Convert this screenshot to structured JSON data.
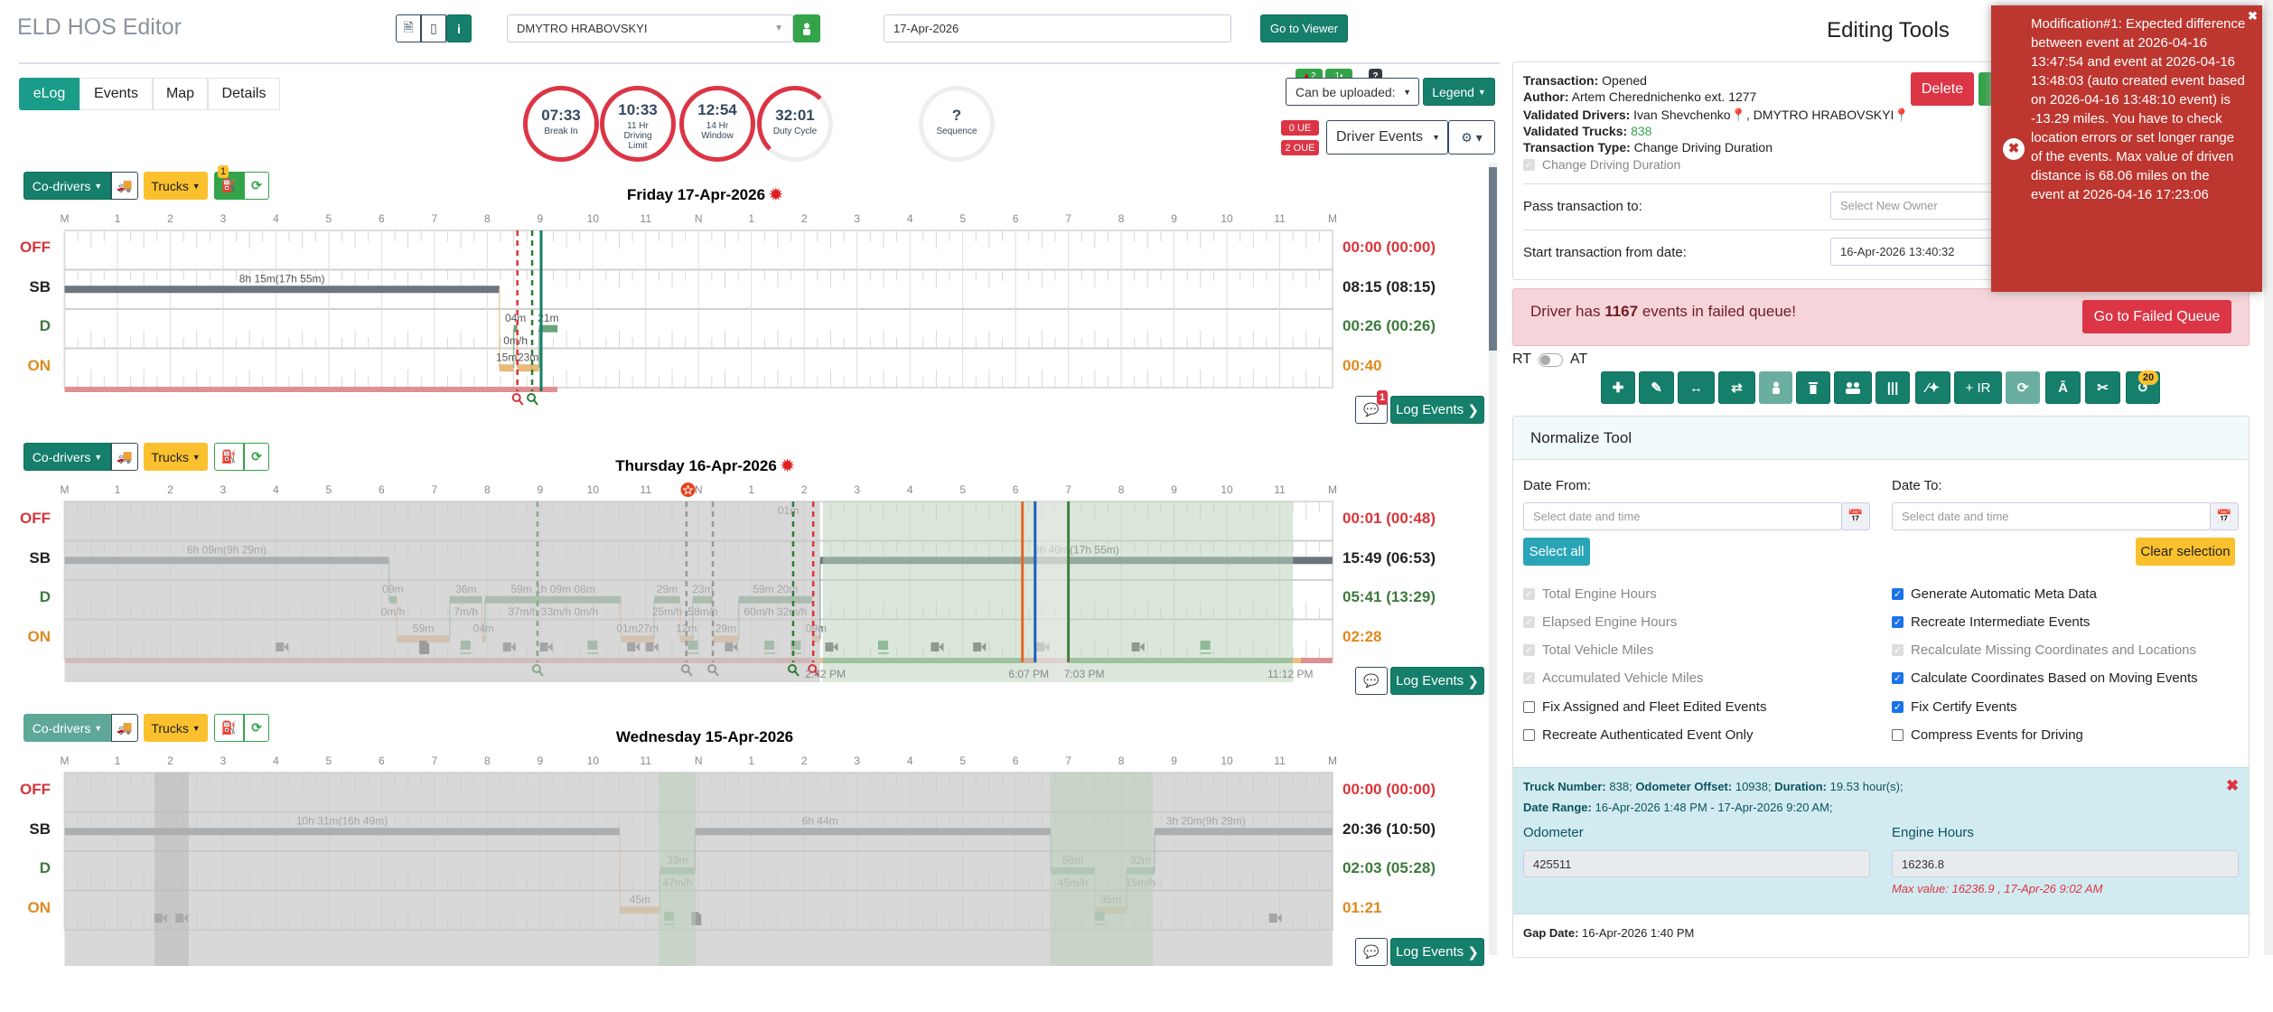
{
  "header": {
    "app_title": "ELD HOS Editor",
    "driver_select": "DMYTRO HRABOVSKYI",
    "date_input": "17-Apr-2026",
    "go_to_viewer": "Go to Viewer"
  },
  "tabs": [
    "eLog",
    "Events",
    "Map",
    "Details"
  ],
  "active_tab": "eLog",
  "clocks": [
    {
      "time": "07:33",
      "label": "Break In"
    },
    {
      "time": "10:33",
      "label": "11 Hr Driving Limit"
    },
    {
      "time": "12:54",
      "label": "14 Hr Window"
    },
    {
      "time": "32:01",
      "label": "Duty Cycle"
    },
    {
      "time": "?",
      "label": "Sequence"
    }
  ],
  "controls": {
    "badge_drivers": "2",
    "badge_trucks": "1",
    "badge_help": "?",
    "can_be_uploaded": "Can be uploaded:",
    "legend": "Legend",
    "ue": "0 UE",
    "oue": "2 OUE",
    "driver_events": "Driver Events"
  },
  "day_toolbar": {
    "codrivers": "Co-drivers",
    "trucks": "Trucks",
    "log_events": "Log Events"
  },
  "hour_labels": [
    "M",
    "1",
    "2",
    "3",
    "4",
    "5",
    "6",
    "7",
    "8",
    "9",
    "10",
    "11",
    "N",
    "1",
    "2",
    "3",
    "4",
    "5",
    "6",
    "7",
    "8",
    "9",
    "10",
    "11",
    "M"
  ],
  "row_labels": [
    "OFF",
    "SB",
    "D",
    "ON"
  ],
  "status_colors": {
    "OFF": "#d9343a",
    "SB": "#222222",
    "D": "#3c7a3c",
    "ON": "#e08a1e"
  },
  "days": [
    {
      "title": "Friday 17-Apr-2026",
      "violation": true,
      "engine_badge": "1",
      "comment_badge": "1",
      "totals": [
        "00:00 (00:00)",
        "08:15 (08:15)",
        "00:26 (00:26)",
        "00:40"
      ],
      "segments": [
        {
          "s": "SB",
          "from": 0,
          "to": 8.23,
          "dur": "8h 15m(17h 55m)"
        },
        {
          "s": "ON",
          "from": 8.23,
          "to": 8.5,
          "dur": "15m"
        },
        {
          "s": "D",
          "from": 8.5,
          "to": 8.57,
          "dur": "04m",
          "speed": "0m/h"
        },
        {
          "s": "ON",
          "from": 8.57,
          "to": 8.98,
          "dur": "23m"
        },
        {
          "s": "D",
          "from": 8.98,
          "to": 9.33,
          "dur": "21m"
        }
      ],
      "markers": [
        {
          "h": 8.57,
          "c": "#d9343a",
          "dash": true
        },
        {
          "h": 8.85,
          "c": "#2e7d32",
          "dash": true
        },
        {
          "h": 9.02,
          "c": "#157f6b",
          "dash": false
        }
      ],
      "timeline": [
        {
          "from": 0,
          "to": 9.33,
          "c": "#e09090"
        }
      ],
      "shades": [],
      "icons": [],
      "times": []
    },
    {
      "title": "Thursday 16-Apr-2026",
      "violation": true,
      "engine_badge": "",
      "comment_badge": "",
      "totals": [
        "00:01 (00:48)",
        "15:49 (06:53)",
        "05:41 (13:29)",
        "02:28"
      ],
      "segments": [
        {
          "s": "SB",
          "from": 0,
          "to": 6.14,
          "dur": "6h 09m(9h 29m)"
        },
        {
          "s": "D",
          "from": 6.14,
          "to": 6.29,
          "dur": "09m",
          "speed": "0m/h"
        },
        {
          "s": "ON",
          "from": 6.29,
          "to": 7.29,
          "dur": "59m"
        },
        {
          "s": "D",
          "from": 7.29,
          "to": 7.9,
          "dur": "36m",
          "speed": "7m/h"
        },
        {
          "s": "ON",
          "from": 7.9,
          "to": 7.96,
          "dur": "04m"
        },
        {
          "s": "D",
          "from": 7.96,
          "to": 10.53,
          "dur": "59m   1h 09m  08m",
          "speed": "37m/h  33m/h  0m/h"
        },
        {
          "s": "ON",
          "from": 10.53,
          "to": 11.16,
          "dur": "01m27m"
        },
        {
          "s": "D",
          "from": 11.16,
          "to": 11.65,
          "dur": "29m",
          "speed": "25m/h"
        },
        {
          "s": "ON",
          "from": 11.65,
          "to": 11.89,
          "dur": "12m"
        },
        {
          "s": "D",
          "from": 11.89,
          "to": 12.27,
          "dur": "23m",
          "speed": "58m/h"
        },
        {
          "s": "ON",
          "from": 12.27,
          "to": 12.76,
          "dur": "29m"
        },
        {
          "s": "D",
          "from": 12.76,
          "to": 14.15,
          "dur": "59m   20m",
          "speed": "60m/h  32m/h"
        },
        {
          "s": "ON",
          "from": 14.15,
          "to": 14.3,
          "dur": "09m"
        },
        {
          "s": "SB",
          "from": 14.3,
          "to": 24,
          "dur": "9h 40m(17h 55m)"
        }
      ],
      "off_note": {
        "h": 13.7,
        "text": "01m"
      },
      "markers": [
        {
          "h": 8.95,
          "c": "#8aa88a",
          "dash": true
        },
        {
          "h": 11.77,
          "c": "#999",
          "dash": true
        },
        {
          "h": 12.27,
          "c": "#999",
          "dash": true
        },
        {
          "h": 13.79,
          "c": "#2e7d32",
          "dash": true
        },
        {
          "h": 14.17,
          "c": "#d9343a",
          "dash": true
        },
        {
          "h": 18.13,
          "c": "#e0662a",
          "dash": false
        },
        {
          "h": 18.37,
          "c": "#1d5fbf",
          "dash": false
        },
        {
          "h": 19.0,
          "c": "#3f7f3f",
          "dash": false
        }
      ],
      "timeline": [
        {
          "from": 0,
          "to": 13.45,
          "c": "#e0a0a0"
        },
        {
          "from": 13.45,
          "to": 14.2,
          "c": "#e09090"
        },
        {
          "from": 14.2,
          "to": 14.35,
          "c": "#f0c080"
        },
        {
          "from": 14.35,
          "to": 18.13,
          "c": "#7fae7f"
        },
        {
          "from": 18.13,
          "to": 19.05,
          "c": "#e09090"
        },
        {
          "from": 19.05,
          "to": 23.25,
          "c": "#7fae7f"
        },
        {
          "from": 23.25,
          "to": 23.4,
          "c": "#f0c080"
        },
        {
          "from": 23.4,
          "to": 24,
          "c": "#e09090"
        }
      ],
      "shades": [
        {
          "from": 0,
          "to": 14.3,
          "c": "#c8c8c8",
          "o": 0.7
        },
        {
          "from": 14.35,
          "to": 23.25,
          "c": "#bcd3bc",
          "o": 0.55
        },
        {
          "from": 18.4,
          "to": 19.0,
          "c": "#e8e8e8",
          "o": 0.6
        }
      ],
      "shade_depth": 26,
      "star_hour": 11.8,
      "icons": [
        {
          "h": 4.1,
          "t": "cam"
        },
        {
          "h": 6.8,
          "t": "doc"
        },
        {
          "h": 7.6,
          "t": "truck"
        },
        {
          "h": 8.4,
          "t": "cam"
        },
        {
          "h": 9.1,
          "t": "cam"
        },
        {
          "h": 10.0,
          "t": "truck"
        },
        {
          "h": 10.75,
          "t": "cam"
        },
        {
          "h": 11.1,
          "t": "cam"
        },
        {
          "h": 11.9,
          "t": "truck"
        },
        {
          "h": 12.6,
          "t": "cam"
        },
        {
          "h": 13.35,
          "t": "truck"
        },
        {
          "h": 13.85,
          "t": "truck"
        },
        {
          "h": 14.5,
          "t": "cam"
        },
        {
          "h": 15.5,
          "t": "truck"
        },
        {
          "h": 16.5,
          "t": "cam"
        },
        {
          "h": 17.3,
          "t": "cam"
        },
        {
          "h": 18.5,
          "t": "cam"
        },
        {
          "h": 20.3,
          "t": "cam"
        },
        {
          "h": 21.6,
          "t": "truck"
        }
      ],
      "times": [
        {
          "h": 14.4,
          "text": "2:42 PM"
        },
        {
          "h": 18.25,
          "text": "6:07 PM"
        },
        {
          "h": 19.3,
          "text": "7:03 PM"
        },
        {
          "h": 23.2,
          "text": "11:12 PM"
        }
      ]
    },
    {
      "title": "Wednesday 15-Apr-2026",
      "violation": false,
      "engine_badge": "",
      "comment_badge": "",
      "totals": [
        "00:00 (00:00)",
        "20:36 (10:50)",
        "02:03 (05:28)",
        "01:21"
      ],
      "segments": [
        {
          "s": "SB",
          "from": 0,
          "to": 10.51,
          "dur": "10h 31m(16h 49m)",
          "lh": 5.25
        },
        {
          "s": "ON",
          "from": 10.51,
          "to": 11.27,
          "dur": "45m"
        },
        {
          "s": "D",
          "from": 11.27,
          "to": 11.93,
          "dur": "39m",
          "speed": "47m/h"
        },
        {
          "s": "SB",
          "from": 11.93,
          "to": 18.67,
          "dur": "6h 44m",
          "lh": 14.3
        },
        {
          "s": "D",
          "from": 18.67,
          "to": 19.5,
          "dur": "50m",
          "speed": "45m/h"
        },
        {
          "s": "ON",
          "from": 19.5,
          "to": 20.1,
          "dur": "35m"
        },
        {
          "s": "D",
          "from": 20.1,
          "to": 20.63,
          "dur": "32m",
          "speed": "15m/h"
        },
        {
          "s": "SB",
          "from": 20.63,
          "to": 24,
          "dur": "3h 20m(9h 29m)",
          "lh": 21.6
        }
      ],
      "markers": [],
      "timeline": [],
      "shades": [
        {
          "from": 0,
          "to": 24,
          "c": "#c8c8c8",
          "o": 0.7
        },
        {
          "from": 1.7,
          "to": 2.35,
          "c": "#b0b0b0",
          "o": 0.4
        },
        {
          "from": 11.25,
          "to": 11.95,
          "c": "#b8cfb8",
          "o": 0.5
        },
        {
          "from": 18.65,
          "to": 20.6,
          "c": "#b8cfb8",
          "o": 0.5
        }
      ],
      "shade_depth": 40,
      "icons": [
        {
          "h": 1.8,
          "t": "cam"
        },
        {
          "h": 2.2,
          "t": "cam"
        },
        {
          "h": 11.45,
          "t": "truck"
        },
        {
          "h": 11.95,
          "t": "doc"
        },
        {
          "h": 19.6,
          "t": "truck"
        },
        {
          "h": 22.9,
          "t": "cam"
        }
      ],
      "times": []
    }
  ],
  "editing": {
    "title": "Editing Tools",
    "transaction_label": "Transaction:",
    "transaction": "Opened",
    "author_label": "Author:",
    "author": "Artem Cherednichenko ext. 1277",
    "validated_drivers_label": "Validated Drivers:",
    "driver1": "Ivan Shevchenko",
    "driver2": "DMYTRO HRABOVSKYI",
    "validated_trucks_label": "Validated Trucks:",
    "trucks": "838",
    "type_label": "Transaction Type:",
    "type": "Change Driving Duration",
    "type_checkbox": "Change Driving Duration",
    "delete": "Delete",
    "pass_label": "Pass transaction to:",
    "pass_placeholder": "Select New Owner",
    "start_label": "Start transaction from date:",
    "start_value": "16-Apr-2026 13:40:32",
    "failed_pre": "Driver has",
    "failed_count": "1167",
    "failed_post": "events in failed queue!",
    "failed_button": "Go to Failed Queue",
    "rt": "RT",
    "at": "AT",
    "history_badge": "20",
    "ir_label": "+ IR"
  },
  "toast": "Modification#1: Expected difference between event at 2026-04-16 13:47:54 and event at 2026-04-16 13:48:03 (auto created event based on 2026-04-16 13:48:10 event) is -13.29 miles. You have to check location errors or set longer range of the events. Max value of driven distance is 68.06 miles on the event at 2026-04-16 17:23:06",
  "normalize": {
    "title": "Normalize Tool",
    "date_from": "Date From:",
    "date_to": "Date To:",
    "placeholder": "Select date and time",
    "select_all": "Select all",
    "clear_selection": "Clear selection",
    "options_left": [
      {
        "label": "Total Engine Hours",
        "state": "disabled"
      },
      {
        "label": "Elapsed Engine Hours",
        "state": "disabled"
      },
      {
        "label": "Total Vehicle Miles",
        "state": "disabled"
      },
      {
        "label": "Accumulated Vehicle Miles",
        "state": "disabled"
      },
      {
        "label": "Fix Assigned and Fleet Edited Events",
        "state": "off"
      },
      {
        "label": "Recreate Authenticated Event Only",
        "state": "off"
      }
    ],
    "options_right": [
      {
        "label": "Generate Automatic Meta Data",
        "state": "on"
      },
      {
        "label": "Recreate Intermediate Events",
        "state": "on"
      },
      {
        "label": "Recalculate Missing Coordinates and Locations",
        "state": "disabled"
      },
      {
        "label": "Calculate Coordinates Based on Moving Events",
        "state": "on"
      },
      {
        "label": "Fix Certify Events",
        "state": "on"
      },
      {
        "label": "Compress Events for Driving",
        "state": "off"
      }
    ]
  },
  "gap": {
    "truck_label": "Truck Number:",
    "truck": "838;",
    "offset_label": "Odometer Offset:",
    "offset": "10938;",
    "duration_label": "Duration:",
    "duration": "19.53 hour(s);",
    "range_label": "Date Range:",
    "range": "16-Apr-2026 1:48 PM - 17-Apr-2026 9:20 AM;",
    "odometer_label": "Odometer",
    "odometer": "425511",
    "engine_label": "Engine Hours",
    "engine": "16236.8",
    "max_value": "Max value: 16236.9 , 17-Apr-26 9:02 AM",
    "gap_date_label": "Gap Date:",
    "gap_date": "16-Apr-2026 1:40 PM"
  }
}
